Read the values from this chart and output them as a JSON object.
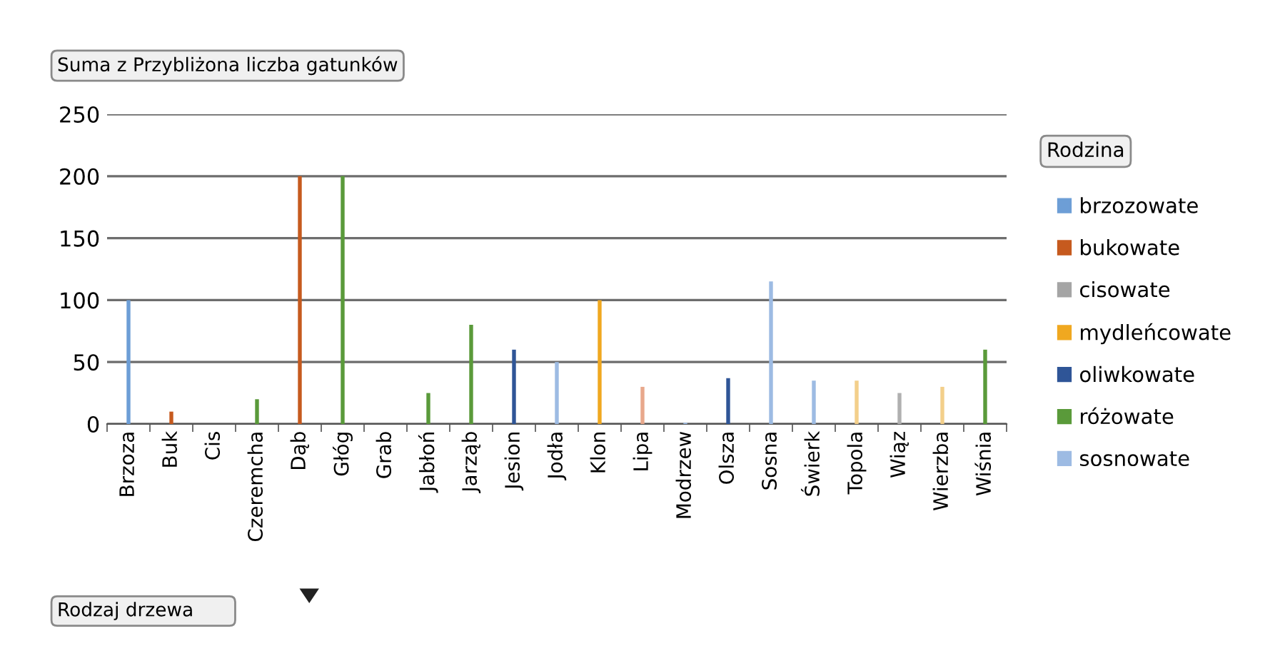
{
  "chart_data": {
    "type": "bar",
    "title": "Suma z Przybliżona liczba gatunków",
    "xlabel": "Rodzaj drzewa",
    "legend_title": "Rodzina",
    "categories": [
      "Brzoza",
      "Buk",
      "Cis",
      "Czeremcha",
      "Dąb",
      "Głóg",
      "Grab",
      "Jabłoń",
      "Jarząb",
      "Jesion",
      "Jodła",
      "Klon",
      "Lipa",
      "Modrzew",
      "Olsza",
      "Sosna",
      "Świerk",
      "Topola",
      "Wiąz",
      "Wierzba",
      "Wiśnia"
    ],
    "series": [
      {
        "name": "brzozowate",
        "color": "#6d9ed6",
        "values": [
          100,
          null,
          null,
          null,
          null,
          null,
          null,
          null,
          null,
          null,
          null,
          null,
          null,
          null,
          null,
          null,
          null,
          null,
          null,
          null,
          null
        ]
      },
      {
        "name": "bukowate",
        "color": "#c65a1e",
        "values": [
          null,
          10,
          null,
          null,
          200,
          null,
          null,
          null,
          null,
          null,
          null,
          null,
          null,
          null,
          null,
          null,
          null,
          null,
          null,
          null,
          null
        ]
      },
      {
        "name": "cisowate",
        "color": "#a5a5a5",
        "values": [
          null,
          null,
          null,
          null,
          null,
          null,
          null,
          null,
          null,
          null,
          null,
          null,
          null,
          null,
          null,
          null,
          null,
          null,
          null,
          null,
          null
        ]
      },
      {
        "name": "mydleńcowate",
        "color": "#f0a820",
        "values": [
          null,
          null,
          null,
          null,
          null,
          null,
          null,
          null,
          null,
          null,
          null,
          100,
          null,
          null,
          null,
          null,
          null,
          null,
          null,
          null,
          null
        ]
      },
      {
        "name": "oliwkowate",
        "color": "#2f5597",
        "values": [
          null,
          null,
          null,
          null,
          null,
          null,
          null,
          null,
          null,
          60,
          null,
          null,
          null,
          null,
          37,
          null,
          null,
          null,
          null,
          null,
          null
        ]
      },
      {
        "name": "różowate",
        "color": "#5a9a3a",
        "values": [
          null,
          null,
          null,
          20,
          null,
          200,
          null,
          25,
          80,
          null,
          null,
          null,
          null,
          null,
          null,
          null,
          null,
          null,
          null,
          null,
          60
        ]
      },
      {
        "name": "sosnowate",
        "color": "#9dbbe3",
        "values": [
          null,
          null,
          null,
          null,
          null,
          null,
          null,
          null,
          null,
          null,
          50,
          null,
          null,
          1,
          null,
          115,
          35,
          null,
          null,
          null,
          null
        ]
      },
      {
        "color": "#e8a88c",
        "values": [
          null,
          null,
          null,
          null,
          null,
          null,
          null,
          null,
          null,
          null,
          null,
          null,
          30,
          null,
          null,
          null,
          null,
          null,
          null,
          null,
          null
        ]
      },
      {
        "color": "#f3cf8a",
        "values": [
          null,
          null,
          null,
          null,
          null,
          null,
          null,
          null,
          null,
          null,
          null,
          null,
          null,
          null,
          null,
          null,
          null,
          35,
          null,
          30,
          null
        ]
      },
      {
        "color": "#b0b0b0",
        "values": [
          null,
          null,
          null,
          null,
          null,
          null,
          null,
          null,
          null,
          null,
          null,
          null,
          null,
          null,
          null,
          null,
          null,
          null,
          25,
          null,
          null
        ]
      }
    ],
    "ylim": [
      0,
      250
    ],
    "yticks": [
      0,
      50,
      100,
      150,
      200,
      250
    ],
    "grid": "y",
    "legend": "right"
  }
}
